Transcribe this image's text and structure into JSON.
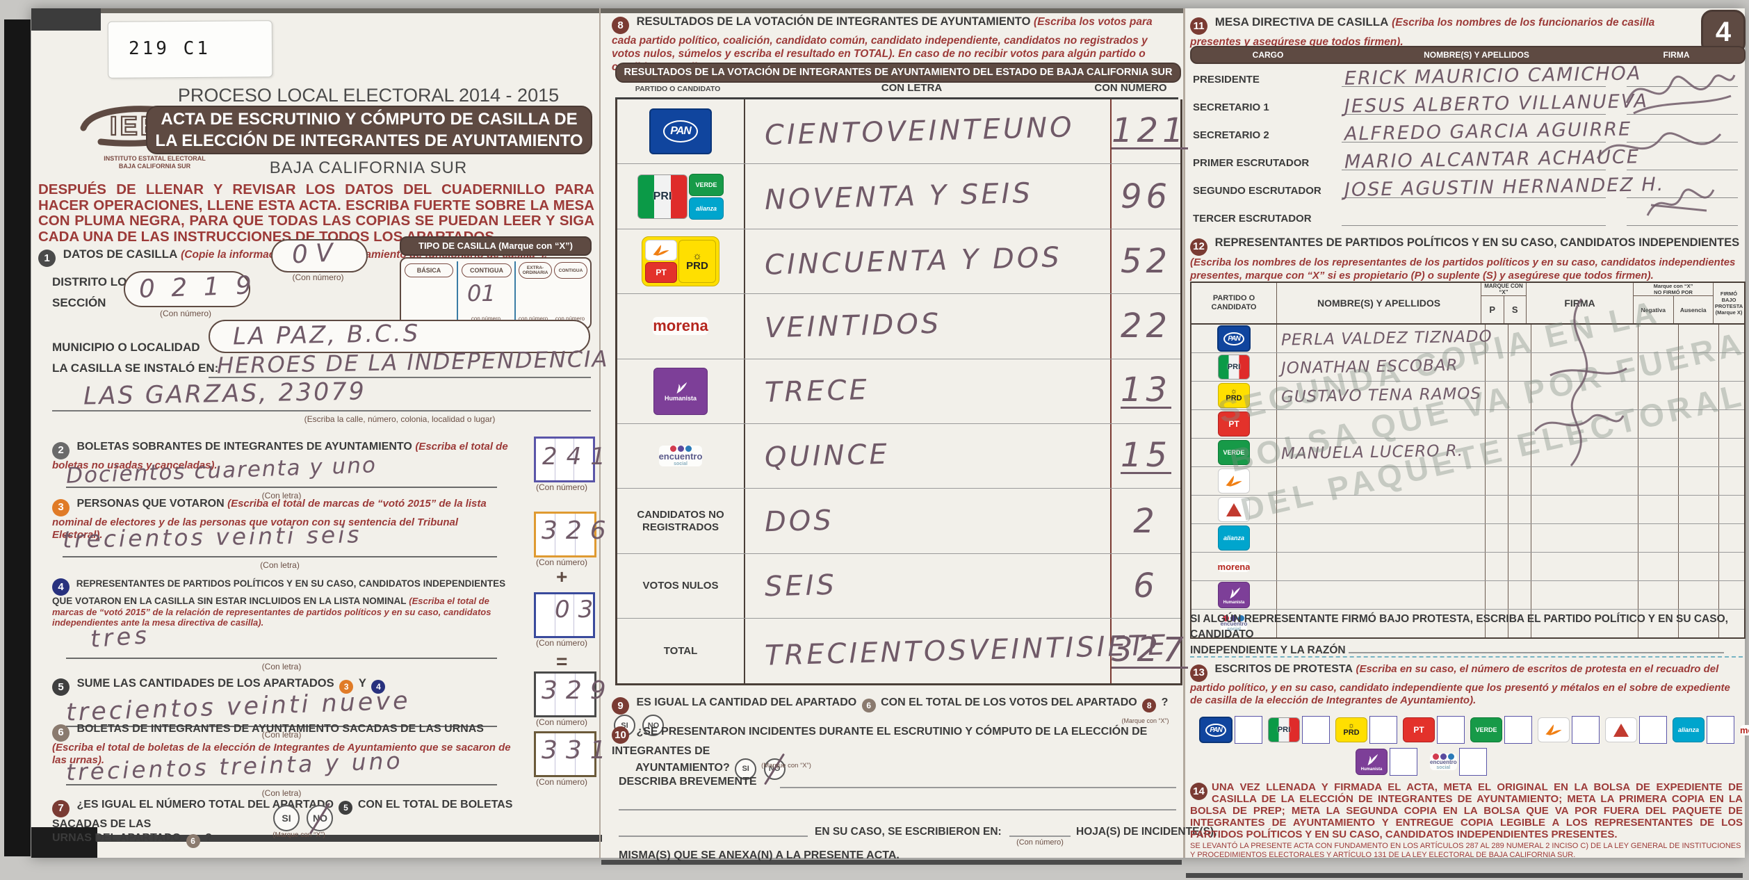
{
  "colors": {
    "banner_brown": "#5e4a42",
    "instruction_red": "#9c3a38",
    "pen_ink": "#705a68",
    "paper": "#f2f0ea",
    "accent_orange": "#e07b27",
    "accent_blue": "#28317e"
  },
  "sticker": "219 C1",
  "header": {
    "proceso": "PROCESO LOCAL ELECTORAL 2014 - 2015",
    "banner1": "ACTA DE ESCRUTINIO Y CÓMPUTO DE CASILLA DE",
    "banner2": "LA ELECCIÓN DE INTEGRANTES DE AYUNTAMIENTO",
    "estado": "BAJA CALIFORNIA SUR",
    "logo_text": "IEE",
    "logo_caption1": "INSTITUTO ESTATAL ELECTORAL",
    "logo_caption2": "BAJA CALIFORNIA SUR",
    "aviso": "DESPUÉS DE LLENAR Y REVISAR LOS DATOS DEL CUADERNILLO PARA HACER OPERACIONES, LLENE ESTA ACTA. ESCRIBA FUERTE SOBRE LA MESA CON PLUMA NEGRA, PARA QUE TODAS LAS COPIAS SE PUEDAN LEER Y SIGA CADA UNA DE LAS INSTRUCCIONES DE TODOS LOS APARTADOS."
  },
  "s1": {
    "num": "1",
    "title": "DATOS DE CASILLA",
    "inst": "(Copie la información de su “Nombramiento de funcionario de casilla”).",
    "distrito_label": "DISTRITO LOCAL ELECTORAL",
    "distrito_value": "0 V",
    "con_numero": "(Con número)",
    "seccion_label": "SECCIÓN",
    "seccion_value": "0 2 1 9",
    "municipio_label": "MUNICIPIO O LOCALIDAD",
    "municipio_value": "LA PAZ, B.C.S",
    "casilla_label": "LA CASILLA SE INSTALÓ EN:",
    "casilla_line1": "HEROES DE LA INDEPENDENCIA",
    "casilla_line2": "LAS GARZAS, 23079",
    "casilla_caption": "(Escriba la calle, número, colonia, localidad o lugar)",
    "tipo": {
      "banner": "TIPO DE CASILLA (Marque con “X”)",
      "opt1": "BÁSICA",
      "opt2": "CONTIGUA",
      "opt3": "EXTRA- ORDINARIA",
      "opt4": "CONTIGUA",
      "contigua_value": "01",
      "con_numero": "con número"
    }
  },
  "s2": {
    "num": "2",
    "title": "BOLETAS SOBRANTES DE INTEGRANTES DE AYUNTAMIENTO",
    "inst": "(Escriba el total de boletas no usadas y canceladas).",
    "letra": "Docientos cuarenta y uno",
    "numero": "241",
    "con_letra": "(Con letra)",
    "con_numero": "(Con número)"
  },
  "s3": {
    "num": "3",
    "title": "PERSONAS QUE VOTARON",
    "inst": "(Escriba el total de marcas de “votó 2015” de la lista nominal de electores y de las personas que votaron con su sentencia del Tribunal Electoral).",
    "letra": "trecientos veinti seis",
    "numero": "326",
    "operator": "+"
  },
  "s4": {
    "num": "4",
    "title": "REPRESENTANTES DE PARTIDOS POLÍTICOS Y EN SU CASO, CANDIDATOS INDEPENDIENTES QUE VOTARON EN LA CASILLA SIN ESTAR INCLUIDOS EN LA LISTA NOMINAL",
    "inst": "(Escriba el total de marcas de “votó 2015” de la relación de representantes de partidos políticos y en su caso, candidatos independientes ante la mesa directiva de casilla).",
    "letra": "tres",
    "numero": "03",
    "operator": "="
  },
  "s5": {
    "num": "5",
    "title": "SUME LAS CANTIDADES DE LOS APARTADOS",
    "ref3": "3",
    "conj": "Y",
    "ref4": "4",
    "letra": "trecientos veinti nueve",
    "numero": "329"
  },
  "s6": {
    "num": "6",
    "title": "BOLETAS DE INTEGRANTES DE AYUNTAMIENTO SACADAS DE LAS URNAS",
    "inst": "(Escriba el total de boletas de la elección de Integrantes de Ayuntamiento  que se sacaron de las urnas).",
    "letra": "trecientos treinta y uno",
    "numero": "331"
  },
  "s7": {
    "num": "7",
    "q1": "¿ES IGUAL EL NÚMERO TOTAL DEL APARTADO",
    "ref5": "5",
    "q2": "CON EL TOTAL DE BOLETAS SACADAS DE LAS",
    "q3": "URNAS DEL APARTADO",
    "ref6": "6",
    "qm": "?",
    "si": "SI",
    "no": "NO",
    "marque": "(Marque con “X”)"
  },
  "s8": {
    "num": "8",
    "title": "RESULTADOS DE LA VOTACIÓN DE INTEGRANTES DE AYUNTAMIENTO",
    "inst": "(Escriba los votos para cada partido político, coalición, candidato común, candidato independiente, candidatos no registrados y votos nulos, súmelos y escriba el resultado en TOTAL). En caso de no recibir votos para algún partido o candidato, escriba ceros.",
    "banner": "RESULTADOS DE LA VOTACIÓN DE INTEGRANTES DE AYUNTAMIENTO DEL ESTADO DE BAJA CALIFORNIA SUR",
    "col_party": "PARTIDO O CANDIDATO",
    "col_letra": "CON LETRA",
    "col_numero": "CON NÚMERO",
    "rows": [
      {
        "party": "pan",
        "label": "",
        "letra": "CIENTOVEINTEUNO",
        "numero": "121",
        "u": true
      },
      {
        "party": "pri-coal",
        "label": "",
        "letra": "NOVENTA Y SEIS",
        "numero": "96",
        "u": false
      },
      {
        "party": "prd-coal",
        "label": "",
        "letra": "CINCUENTA Y DOS",
        "numero": "52",
        "u": false
      },
      {
        "party": "morena",
        "label": "",
        "letra": "VEINTIDOS",
        "numero": "22",
        "u": false
      },
      {
        "party": "humanista",
        "label": "",
        "letra": "TRECE",
        "numero": "13",
        "u": true
      },
      {
        "party": "es",
        "label": "",
        "letra": "QUINCE",
        "numero": "15",
        "u": true
      },
      {
        "party": "",
        "label": "CANDIDATOS NO REGISTRADOS",
        "letra": "DOS",
        "numero": "2",
        "u": false
      },
      {
        "party": "",
        "label": "VOTOS NULOS",
        "letra": "SEIS",
        "numero": "6",
        "u": false
      },
      {
        "party": "",
        "label": "TOTAL",
        "letra": "TRECIENTOSVEINTISIETE",
        "numero": "327",
        "u": true
      }
    ]
  },
  "s9": {
    "num": "9",
    "t1": "ES IGUAL LA CANTIDAD DEL APARTADO",
    "ref6": "6",
    "t2": "CON EL TOTAL DE LOS VOTOS DEL APARTADO",
    "ref8": "8",
    "qm": "?",
    "si": "SI",
    "no": "NO",
    "marque": "(Marque con “X”)"
  },
  "s10": {
    "num": "10",
    "t1": "¿SE PRESENTARON INCIDENTES DURANTE EL ESCRUTINIO Y CÓMPUTO DE LA ELECCIÓN DE INTEGRANTES DE",
    "t2": "AYUNTAMIENTO?",
    "si": "SI",
    "no": "NO",
    "marque": "(Marque con “X”)",
    "describa": "DESCRIBA BREVEMENTE",
    "en_su_caso": "EN SU CASO, SE ESCRIBIERON EN:",
    "con_numero": "(Con número)",
    "hojas": "HOJA(S) DE INCIDENTE(S),",
    "mismas": "MISMA(S) QUE SE ANEXA(N) A LA PRESENTE ACTA."
  },
  "s11": {
    "num": "11",
    "title": "MESA DIRECTIVA DE CASILLA",
    "inst": "(Escriba los nombres de los funcionarios de casilla presentes y asegúrese que todos firmen).",
    "page_badge": "4",
    "col_cargo": "CARGO",
    "col_nombre": "NOMBRE(S) Y APELLIDOS",
    "col_firma": "FIRMA",
    "rows": [
      {
        "cargo": "PRESIDENTE",
        "nombre": "ERICK MAURICIO CAMICHOA",
        "firma": true
      },
      {
        "cargo": "SECRETARIO 1",
        "nombre": "JESUS ALBERTO VILLANUEVA",
        "firma": true
      },
      {
        "cargo": "SECRETARIO 2",
        "nombre": "ALFREDO GARCIA AGUIRRE",
        "firma": true
      },
      {
        "cargo": "PRIMER ESCRUTADOR",
        "nombre": "MARIO ALCANTAR ACHAUCE",
        "firma": true
      },
      {
        "cargo": "SEGUNDO ESCRUTADOR",
        "nombre": "JOSE AGUSTIN HERNANDEZ H.",
        "firma": true
      },
      {
        "cargo": "TERCER ESCRUTADOR",
        "nombre": "",
        "firma": false
      }
    ]
  },
  "s12": {
    "num": "12",
    "title": "REPRESENTANTES DE  PARTIDOS POLÍTICOS Y EN SU CASO, CANDIDATOS INDEPENDIENTES",
    "inst": "(Escriba los nombres de los representantes de los partidos políticos y en su caso, candidatos independientes presentes, marque con “X” si es propietario (P) o suplente (S) y asegúrese que todos firmen).",
    "col_party": "PARTIDO O CANDIDATO",
    "col_nombre": "NOMBRE(S) Y APELLIDOS",
    "col_marque": "MARQUE CON “X”",
    "col_p": "P",
    "col_s": "S",
    "col_firma": "FIRMA",
    "col_nofirmo1": "Marque con “X”",
    "col_nofirmo2": "NO FIRMÓ POR",
    "col_neg": "Negativa",
    "col_aus": "Ausencia",
    "col_protesta": "FIRMÓ BAJO PROTESTA",
    "col_protesta2": "(Marque X)",
    "rows": [
      {
        "party": "pan-sm",
        "nombre": "PERLA VALDEZ TIZNADO"
      },
      {
        "party": "pri-sm",
        "nombre": "JONATHAN ESCOBAR"
      },
      {
        "party": "prd-sm",
        "nombre": "GUSTAVO TENA RAMOS"
      },
      {
        "party": "pt-sm",
        "nombre": ""
      },
      {
        "party": "verde-sm",
        "nombre": "MANUELA LUCERO R."
      },
      {
        "party": "mc-sm",
        "nombre": ""
      },
      {
        "party": "prs-sm",
        "nombre": ""
      },
      {
        "party": "alianza-sm",
        "nombre": ""
      },
      {
        "party": "morena-sm",
        "nombre": ""
      },
      {
        "party": "humanista-sm",
        "nombre": ""
      },
      {
        "party": "es-sm",
        "nombre": ""
      }
    ],
    "protesta_note1": "SI ALGÚN REPRESENTANTE FIRMÓ BAJO PROTESTA, ESCRIBA EL PARTIDO POLÍTICO Y EN SU CASO, CANDIDATO",
    "protesta_note2": "INDEPENDIENTE Y LA RAZÓN",
    "watermark1": "SEGUNDA COPIA EN LA",
    "watermark2": "BOLSA QUE VA POR FUERA",
    "watermark3": "DEL PAQUETE ELECTORAL"
  },
  "s13": {
    "num": "13",
    "title": "ESCRITOS DE PROTESTA",
    "inst": "(Escriba en su caso, el número de escritos de protesta en el recuadro del partido político, y en su caso, candidato independiente que los presentó y métalos en el sobre de expediente de casilla de la elección de Integrantes de Ayuntamiento).",
    "row1": [
      "pan-sm",
      "pri-sm",
      "prd-sm",
      "pt-sm",
      "verde-sm",
      "mc-sm",
      "prs-sm",
      "alianza-sm",
      "morena-sm"
    ],
    "row2": [
      "humanista-sm",
      "es-sm"
    ]
  },
  "s14": {
    "num": "14",
    "text": "UNA VEZ LLENADA Y FIRMADA EL ACTA, META EL ORIGINAL EN LA BOLSA DE EXPEDIENTE DE CASILLA DE LA ELECCIÓN DE INTEGRANTES DE AYUNTAMIENTO; META LA PRIMERA COPIA EN LA BOLSA DE PREP; META LA SEGUNDA COPIA EN LA BOLSA QUE VA POR FUERA DEL PAQUETE DE INTEGRANTES DE AYUNTAMIENTO  Y ENTREGUE COPIA LEGIBLE A LOS REPRESENTANTES DE LOS PARTIDOS POLÍTICOS Y EN SU CASO, CANDIDATOS INDEPENDIENTES PRESENTES.",
    "footnote": "SE LEVANTÓ LA PRESENTE ACTA CON FUNDAMENTO EN LOS ARTÍCULOS 287 AL 289 NUMERAL 2 INCISO C) DE LA LEY GENERAL DE INSTITUCIONES Y PROCEDIMIENTOS ELECTORALES Y ARTÍCULO 131 DE LA LEY ELECTORAL DE BAJA CALIFORNIA SUR."
  },
  "parties": {
    "pan": "PAN",
    "pri": "PRI",
    "verde": "VERDE",
    "alianza": "alianza",
    "prd": "PRD",
    "pt": "PT",
    "morena": "morena",
    "humanista": "Humanista",
    "es_a": "encuentro",
    "es_b": "social",
    "sun": "☼"
  }
}
